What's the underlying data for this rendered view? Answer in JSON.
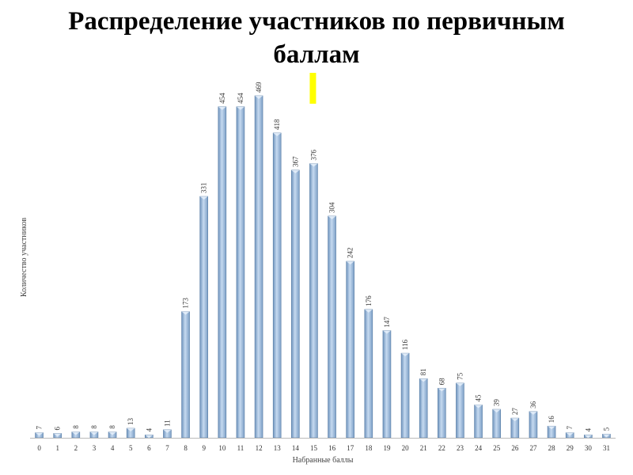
{
  "chart_data": {
    "type": "bar",
    "title_lines": [
      "Распределение участников по первичным",
      "баллам"
    ],
    "xlabel": "Набранные баллы",
    "ylabel": "Количество участников",
    "categories": [
      "0",
      "1",
      "2",
      "3",
      "4",
      "5",
      "6",
      "7",
      "8",
      "9",
      "10",
      "11",
      "12",
      "13",
      "14",
      "15",
      "16",
      "17",
      "18",
      "19",
      "20",
      "21",
      "22",
      "23",
      "24",
      "25",
      "26",
      "27",
      "28",
      "29",
      "30",
      "31"
    ],
    "values": [
      7,
      6,
      8,
      8,
      8,
      13,
      4,
      11,
      173,
      331,
      454,
      454,
      469,
      418,
      367,
      376,
      304,
      242,
      176,
      147,
      116,
      81,
      68,
      75,
      45,
      39,
      27,
      36,
      16,
      7,
      4,
      5
    ],
    "ylim": [
      0,
      500
    ],
    "grid": false,
    "legend": "none",
    "marker_category": "15",
    "colors": {
      "bar": "#9ab8d8",
      "bar_edge": "#5a7ea6",
      "marker": "#ffff00",
      "axis": "#bbbbbb"
    }
  }
}
